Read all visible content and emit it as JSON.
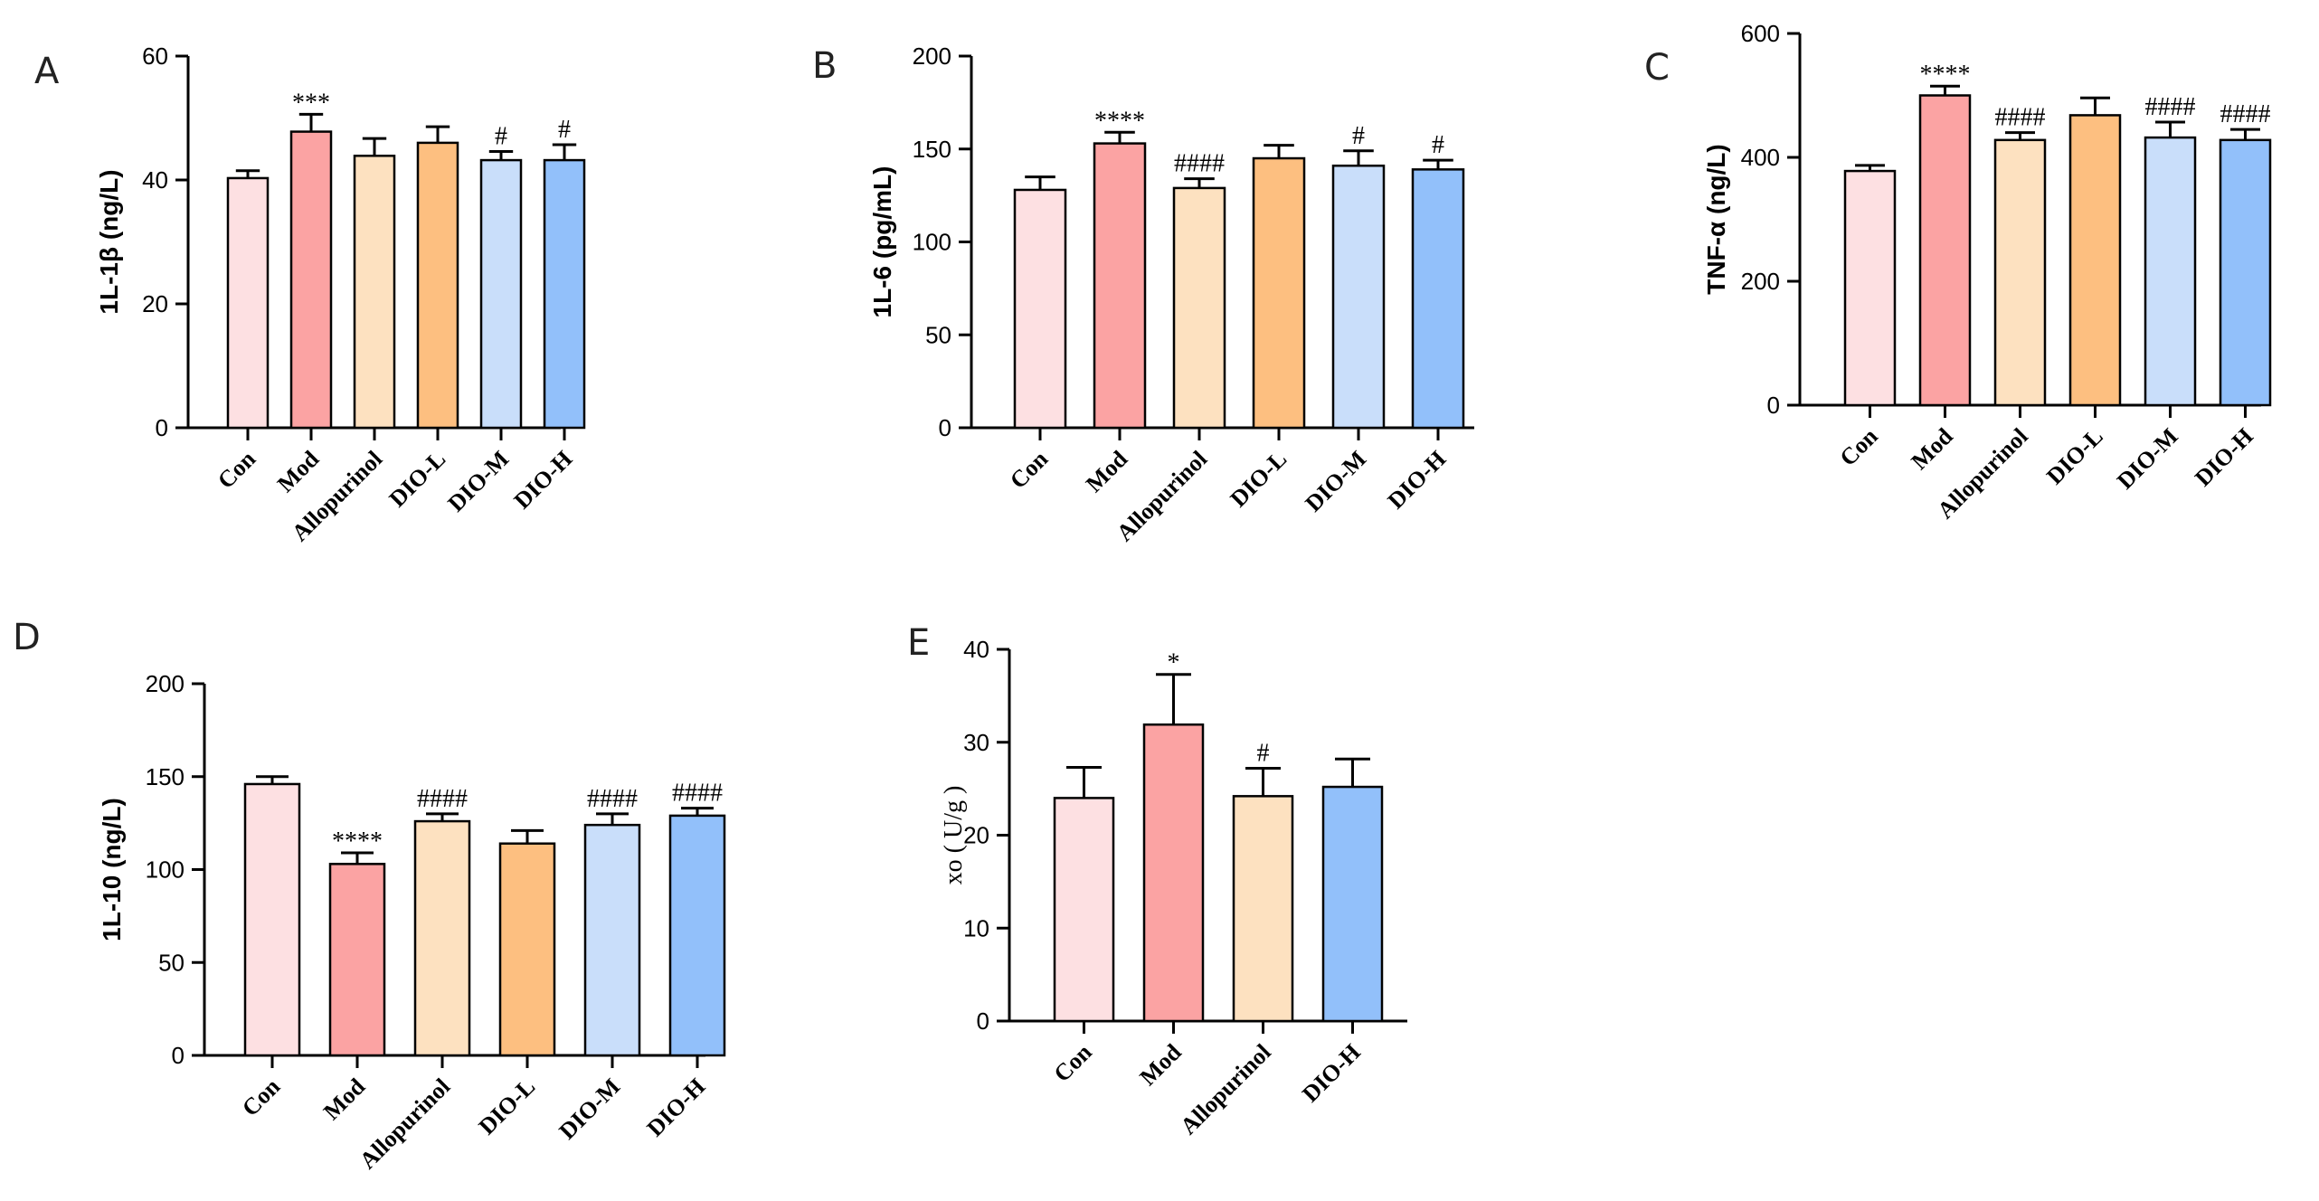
{
  "colors": {
    "Con": "#fde0e2",
    "Mod": "#fba3a3",
    "Allopurinol": "#fde1c0",
    "DIO-L": "#fdbf80",
    "DIO-M": "#c9defa",
    "DIO-H": "#92c0fa"
  },
  "chart_data": [
    {
      "type": "bar",
      "panel": "A",
      "ylabel": "1L-1β (ng/L)",
      "ylim": [
        0,
        60
      ],
      "yticks": [
        "0",
        "20",
        "40",
        "60"
      ],
      "categories": [
        "Con",
        "Mod",
        "Allopurinol",
        "DIO-L",
        "DIO-M",
        "DIO-H"
      ],
      "values": [
        40.3,
        47.8,
        43.9,
        46.0,
        43.2,
        43.2
      ],
      "errors": [
        1.2,
        2.8,
        2.8,
        2.6,
        1.4,
        2.5
      ],
      "significance": [
        "",
        "***",
        "",
        "",
        "#",
        "#"
      ]
    },
    {
      "type": "bar",
      "panel": "B",
      "ylabel": "1L-6 (pg/mL)",
      "ylim": [
        0,
        200
      ],
      "yticks": [
        "0",
        "50",
        "100",
        "150",
        "200"
      ],
      "categories": [
        "Con",
        "Mod",
        "Allopurinol",
        "DIO-L",
        "DIO-M",
        "DIO-H"
      ],
      "values": [
        128,
        153,
        129,
        145,
        141,
        139
      ],
      "errors": [
        7,
        6,
        5,
        7,
        8,
        5
      ],
      "significance": [
        "",
        "****",
        "####",
        "",
        "#",
        "#"
      ]
    },
    {
      "type": "bar",
      "panel": "C",
      "ylabel": "TNF-α (ng/L)",
      "ylim": [
        0,
        600
      ],
      "yticks": [
        "0",
        "200",
        "400",
        "600"
      ],
      "categories": [
        "Con",
        "Mod",
        "Allopurinol",
        "DIO-L",
        "DIO-M",
        "DIO-H"
      ],
      "values": [
        378,
        500,
        428,
        468,
        432,
        428
      ],
      "errors": [
        9,
        15,
        12,
        28,
        25,
        17
      ],
      "significance": [
        "",
        "****",
        "####",
        "",
        "####",
        "####"
      ]
    },
    {
      "type": "bar",
      "panel": "D",
      "ylabel": "1L-10 (ng/L)",
      "ylim": [
        0,
        200
      ],
      "yticks": [
        "0",
        "50",
        "100",
        "150",
        "200"
      ],
      "categories": [
        "Con",
        "Mod",
        "Allopurinol",
        "DIO-L",
        "DIO-M",
        "DIO-H"
      ],
      "values": [
        146,
        103,
        126,
        114,
        124,
        129
      ],
      "errors": [
        4,
        6,
        4,
        7,
        6,
        4
      ],
      "significance": [
        "",
        "****",
        "####",
        "",
        "####",
        "####"
      ]
    },
    {
      "type": "bar",
      "panel": "E",
      "ylabel": "xo ( U/g )",
      "ylim": [
        0,
        40
      ],
      "yticks": [
        "0",
        "10",
        "20",
        "30",
        "40"
      ],
      "categories": [
        "Con",
        "Mod",
        "Allopurinol",
        "DIO-H"
      ],
      "values": [
        24.0,
        31.9,
        24.2,
        25.2
      ],
      "errors": [
        3.3,
        5.4,
        3.0,
        3.0
      ],
      "significance": [
        "",
        "*",
        "#",
        ""
      ]
    }
  ]
}
